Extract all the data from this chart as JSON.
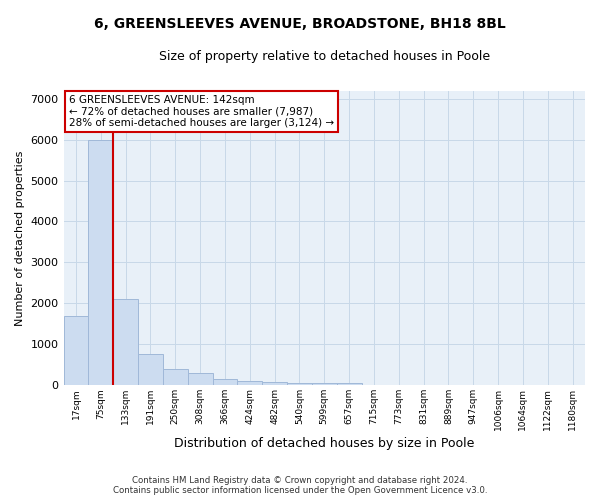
{
  "title": "6, GREENSLEEVES AVENUE, BROADSTONE, BH18 8BL",
  "subtitle": "Size of property relative to detached houses in Poole",
  "xlabel": "Distribution of detached houses by size in Poole",
  "ylabel": "Number of detached properties",
  "footer_line1": "Contains HM Land Registry data © Crown copyright and database right 2024.",
  "footer_line2": "Contains public sector information licensed under the Open Government Licence v3.0.",
  "bin_labels": [
    "17sqm",
    "75sqm",
    "133sqm",
    "191sqm",
    "250sqm",
    "308sqm",
    "366sqm",
    "424sqm",
    "482sqm",
    "540sqm",
    "599sqm",
    "657sqm",
    "715sqm",
    "773sqm",
    "831sqm",
    "889sqm",
    "947sqm",
    "1006sqm",
    "1064sqm",
    "1122sqm",
    "1180sqm"
  ],
  "bar_values": [
    1700,
    6000,
    2100,
    750,
    400,
    300,
    160,
    110,
    80,
    55,
    50,
    45,
    0,
    0,
    0,
    0,
    0,
    0,
    0,
    0,
    0
  ],
  "bar_color": "#ccdcf0",
  "bar_edge_color": "#a0b8d8",
  "grid_color": "#c8d8e8",
  "bg_color": "#e8f0f8",
  "red_line_x": 1.5,
  "annotation_text": "6 GREENSLEEVES AVENUE: 142sqm\n← 72% of detached houses are smaller (7,987)\n28% of semi-detached houses are larger (3,124) →",
  "annotation_box_color": "#ffffff",
  "annotation_border_color": "#cc0000",
  "property_line_color": "#cc0000",
  "ylim": [
    0,
    7200
  ],
  "yticks": [
    0,
    1000,
    2000,
    3000,
    4000,
    5000,
    6000,
    7000
  ],
  "title_fontsize": 10,
  "subtitle_fontsize": 9,
  "ylabel_fontsize": 8,
  "xlabel_fontsize": 9
}
